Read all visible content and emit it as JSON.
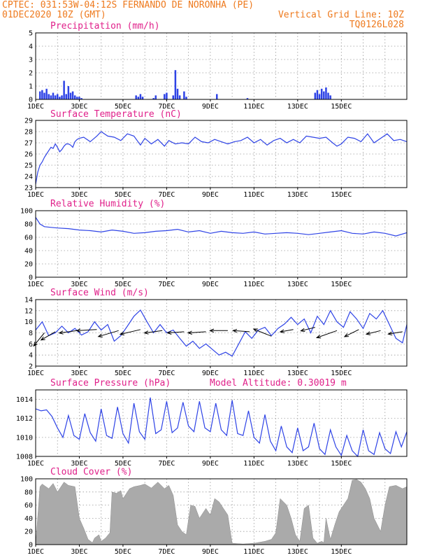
{
  "header": {
    "line1_left": "CPTEC:  031:53W-04:12S  FERNANDO DE NORONHA (PE)",
    "line2_left": "01DEC2020 10Z (GMT)",
    "line2_right": "Vertical Grid Line: 10Z",
    "line3_right": "TQ0126L028"
  },
  "colors": {
    "header": "#ee7a1e",
    "panel_title": "#e0208a",
    "series": "#2e43e6",
    "cloud": "#aaaaaa",
    "grid": "#9a9a9a"
  },
  "x_ticks": [
    "1DEC",
    "3DEC",
    "5DEC",
    "7DEC",
    "9DEC",
    "11DEC",
    "13DEC",
    "15DEC"
  ],
  "chart_data": [
    {
      "type": "bar",
      "title": "Precipitation (mm/h)",
      "ylim": [
        0,
        5
      ],
      "yticks": [
        "0",
        "1",
        "2",
        "3",
        "4",
        "5"
      ],
      "x_unit": "days since 1DEC2020 10Z",
      "x": [
        0.2,
        0.3,
        0.4,
        0.5,
        0.6,
        0.7,
        0.8,
        0.9,
        1.0,
        1.1,
        1.2,
        1.3,
        1.4,
        1.5,
        1.6,
        1.7,
        1.8,
        1.9,
        2.0,
        2.1,
        4.6,
        4.7,
        4.8,
        4.9,
        5.4,
        5.5,
        5.9,
        6.0,
        6.3,
        6.4,
        6.5,
        6.6,
        6.8,
        6.9,
        8.3,
        9.7,
        12.8,
        12.9,
        13.0,
        13.1,
        13.2,
        13.3,
        13.4,
        13.5
      ],
      "values": [
        0.6,
        0.7,
        0.5,
        0.8,
        0.4,
        0.3,
        0.5,
        0.3,
        0.4,
        0.2,
        0.3,
        1.4,
        0.4,
        1.0,
        0.5,
        0.6,
        0.3,
        0.2,
        0.2,
        0.1,
        0.3,
        0.2,
        0.4,
        0.2,
        0.1,
        0.3,
        0.4,
        0.5,
        0.3,
        2.2,
        0.8,
        0.3,
        0.6,
        0.2,
        0.4,
        0.1,
        0.5,
        0.7,
        0.4,
        0.8,
        0.6,
        0.9,
        0.5,
        0.3
      ]
    },
    {
      "type": "line",
      "title": "Surface Temperature (nC)",
      "ylim": [
        23,
        29
      ],
      "yticks": [
        "23",
        "24",
        "25",
        "26",
        "27",
        "28",
        "29"
      ],
      "x_unit": "days since 1DEC2020 10Z",
      "x": [
        0,
        0.1,
        0.2,
        0.3,
        0.4,
        0.5,
        0.6,
        0.7,
        0.8,
        0.9,
        1.0,
        1.1,
        1.2,
        1.3,
        1.4,
        1.5,
        1.6,
        1.7,
        1.8,
        1.9,
        2.0,
        2.2,
        2.5,
        2.8,
        3.0,
        3.3,
        3.6,
        3.9,
        4.2,
        4.5,
        4.8,
        5.0,
        5.3,
        5.6,
        5.9,
        6.1,
        6.4,
        6.7,
        7.0,
        7.3,
        7.6,
        7.9,
        8.2,
        8.5,
        8.8,
        9.1,
        9.4,
        9.7,
        10.0,
        10.3,
        10.6,
        10.9,
        11.2,
        11.5,
        11.8,
        12.1,
        12.4,
        12.7,
        13.0,
        13.3,
        13.6,
        13.8,
        14.0,
        14.3,
        14.6,
        14.9,
        15.2,
        15.5,
        15.8,
        16.1,
        16.4,
        16.7,
        17.0
      ],
      "values": [
        23.3,
        24.4,
        25.0,
        25.3,
        25.7,
        26.0,
        26.3,
        26.6,
        26.5,
        26.9,
        26.6,
        26.2,
        26.4,
        26.7,
        26.9,
        26.9,
        26.8,
        26.6,
        27.1,
        27.3,
        27.4,
        27.5,
        27.1,
        27.6,
        28.0,
        27.6,
        27.5,
        27.2,
        27.8,
        27.6,
        26.8,
        27.4,
        26.9,
        27.3,
        26.7,
        27.2,
        26.9,
        27.0,
        26.9,
        27.5,
        27.1,
        27.0,
        27.3,
        27.1,
        26.9,
        27.1,
        27.2,
        27.5,
        27.0,
        27.3,
        26.8,
        27.2,
        27.4,
        27.0,
        27.3,
        27.0,
        27.6,
        27.5,
        27.4,
        27.5,
        27.0,
        26.7,
        26.9,
        27.5,
        27.4,
        27.1,
        27.8,
        27.0,
        27.4,
        27.8,
        27.2,
        27.3,
        27.1
      ]
    },
    {
      "type": "line",
      "title": "Relative Humidity (%)",
      "ylim": [
        0,
        100
      ],
      "yticks": [
        "0",
        "20",
        "40",
        "60",
        "80",
        "100"
      ],
      "x_unit": "days since 1DEC2020 10Z",
      "x": [
        0,
        0.2,
        0.4,
        0.7,
        1.0,
        1.5,
        2.0,
        2.5,
        3.0,
        3.5,
        4.0,
        4.5,
        5.0,
        5.5,
        6.0,
        6.5,
        7.0,
        7.5,
        8.0,
        8.5,
        9.0,
        9.5,
        10.0,
        10.5,
        11.0,
        11.5,
        12.0,
        12.5,
        13.0,
        13.5,
        14.0,
        14.5,
        15.0,
        15.5,
        16.0,
        16.5,
        17.0
      ],
      "values": [
        90,
        80,
        76,
        75,
        74,
        73,
        71,
        70,
        68,
        71,
        69,
        66,
        67,
        69,
        70,
        72,
        68,
        70,
        66,
        69,
        67,
        66,
        68,
        65,
        66,
        67,
        66,
        64,
        66,
        68,
        70,
        66,
        65,
        68,
        66,
        62,
        67
      ]
    },
    {
      "type": "line",
      "title": "Surface Wind (m/s)",
      "ylim": [
        2,
        14
      ],
      "yticks": [
        "2",
        "4",
        "6",
        "8",
        "10",
        "12",
        "14"
      ],
      "x_unit": "days since 1DEC2020 10Z",
      "x": [
        0,
        0.3,
        0.6,
        0.9,
        1.2,
        1.5,
        1.8,
        2.1,
        2.4,
        2.7,
        3.0,
        3.3,
        3.6,
        3.9,
        4.2,
        4.5,
        4.8,
        5.1,
        5.4,
        5.7,
        6.0,
        6.3,
        6.6,
        6.9,
        7.2,
        7.5,
        7.8,
        8.1,
        8.4,
        8.7,
        9.0,
        9.3,
        9.6,
        9.9,
        10.2,
        10.5,
        10.8,
        11.1,
        11.4,
        11.7,
        12.0,
        12.3,
        12.6,
        12.9,
        13.2,
        13.5,
        13.8,
        14.1,
        14.4,
        14.7,
        15.0,
        15.3,
        15.6,
        15.9,
        16.2,
        16.5,
        16.8,
        17.0
      ],
      "values": [
        8.5,
        10.0,
        7.5,
        8.0,
        9.2,
        8.0,
        8.8,
        7.6,
        8.2,
        10.0,
        8.5,
        9.5,
        6.5,
        7.5,
        9.2,
        11.0,
        12.1,
        10.0,
        8.0,
        9.5,
        8.0,
        8.5,
        7.0,
        5.6,
        6.5,
        5.2,
        6.0,
        5.0,
        4.0,
        4.5,
        3.8,
        6.0,
        8.2,
        7.0,
        8.5,
        9.0,
        7.5,
        8.8,
        9.6,
        10.8,
        9.5,
        10.5,
        8.0,
        11.0,
        9.5,
        12.0,
        10.0,
        9.0,
        11.8,
        10.5,
        8.8,
        11.5,
        10.5,
        12.0,
        9.5,
        7.0,
        6.2,
        9.5
      ],
      "arrows": [
        {
          "x": 0.4,
          "speed": 8.0,
          "dx": -0.45,
          "dy": 0.55
        },
        {
          "x": 0.9,
          "speed": 8.2,
          "dx": -0.6,
          "dy": 0.35
        },
        {
          "x": 1.9,
          "speed": 8.4,
          "dx": -0.75,
          "dy": 0.1
        },
        {
          "x": 2.8,
          "speed": 8.6,
          "dx": -0.85,
          "dy": 0.05
        },
        {
          "x": 3.8,
          "speed": 8.4,
          "dx": -0.85,
          "dy": 0.25
        },
        {
          "x": 4.8,
          "speed": 8.6,
          "dx": -0.85,
          "dy": 0.2
        },
        {
          "x": 5.8,
          "speed": 8.4,
          "dx": -0.75,
          "dy": 0.1
        },
        {
          "x": 6.8,
          "speed": 8.2,
          "dx": -0.7,
          "dy": 0.05
        },
        {
          "x": 7.8,
          "speed": 8.2,
          "dx": -0.75,
          "dy": 0.05
        },
        {
          "x": 8.8,
          "speed": 8.4,
          "dx": -0.75,
          "dy": 0.0
        },
        {
          "x": 9.8,
          "speed": 8.2,
          "dx": -0.7,
          "dy": -0.05
        },
        {
          "x": 10.8,
          "speed": 7.4,
          "dx": -0.75,
          "dy": -0.3
        },
        {
          "x": 11.8,
          "speed": 8.6,
          "dx": -0.55,
          "dy": 0.1
        },
        {
          "x": 12.8,
          "speed": 9.0,
          "dx": -0.6,
          "dy": 0.15
        },
        {
          "x": 13.8,
          "speed": 8.4,
          "dx": -0.85,
          "dy": 0.3
        },
        {
          "x": 14.8,
          "speed": 8.6,
          "dx": -0.6,
          "dy": 0.3
        },
        {
          "x": 15.8,
          "speed": 8.4,
          "dx": -0.6,
          "dy": 0.15
        },
        {
          "x": 16.8,
          "speed": 8.2,
          "dx": -0.6,
          "dy": 0.1
        }
      ]
    },
    {
      "type": "line",
      "title": "Surface Pressure (hPa)",
      "note": "Model Altitude: 0.30019  m",
      "ylim": [
        1008,
        1015
      ],
      "yticks": [
        "1008",
        "1010",
        "1012",
        "1014"
      ],
      "x_unit": "days since 1DEC2020 10Z",
      "x": [
        0,
        0.25,
        0.5,
        0.75,
        1.0,
        1.25,
        1.5,
        1.75,
        2.0,
        2.25,
        2.5,
        2.75,
        3.0,
        3.25,
        3.5,
        3.75,
        4.0,
        4.25,
        4.5,
        4.75,
        5.0,
        5.25,
        5.5,
        5.75,
        6.0,
        6.25,
        6.5,
        6.75,
        7.0,
        7.25,
        7.5,
        7.75,
        8.0,
        8.25,
        8.5,
        8.75,
        9.0,
        9.25,
        9.5,
        9.75,
        10.0,
        10.25,
        10.5,
        10.75,
        11.0,
        11.25,
        11.5,
        11.75,
        12.0,
        12.25,
        12.5,
        12.75,
        13.0,
        13.25,
        13.5,
        13.75,
        14.0,
        14.25,
        14.5,
        14.75,
        15.0,
        15.25,
        15.5,
        15.75,
        16.0,
        16.25,
        16.5,
        16.75,
        17.0
      ],
      "values": [
        1013.0,
        1012.8,
        1012.9,
        1012.2,
        1011.0,
        1010.0,
        1012.3,
        1010.2,
        1009.8,
        1012.5,
        1010.5,
        1009.6,
        1013.0,
        1010.2,
        1009.9,
        1013.2,
        1010.4,
        1009.4,
        1013.6,
        1010.6,
        1009.8,
        1014.2,
        1010.4,
        1010.8,
        1013.8,
        1010.5,
        1011.0,
        1013.7,
        1011.2,
        1010.6,
        1013.8,
        1011.0,
        1010.6,
        1013.6,
        1010.8,
        1010.2,
        1013.9,
        1010.4,
        1010.2,
        1012.8,
        1010.0,
        1009.4,
        1012.4,
        1009.6,
        1008.6,
        1011.2,
        1009.0,
        1008.4,
        1011.0,
        1008.6,
        1009.0,
        1011.5,
        1008.8,
        1008.2,
        1010.8,
        1009.0,
        1008.1,
        1010.2,
        1008.6,
        1008.0,
        1010.8,
        1008.6,
        1008.2,
        1010.5,
        1008.8,
        1008.3,
        1010.6,
        1009.0,
        1010.6
      ]
    },
    {
      "type": "area",
      "title": "Cloud Cover (%)",
      "ylim": [
        0,
        100
      ],
      "yticks": [
        "0",
        "20",
        "40",
        "60",
        "80",
        "100"
      ],
      "x_unit": "days since 1DEC2020 10Z",
      "x": [
        0,
        0.2,
        0.3,
        0.6,
        0.8,
        1.0,
        1.3,
        1.5,
        1.8,
        2.0,
        2.2,
        2.4,
        2.6,
        2.7,
        2.9,
        3.0,
        3.2,
        3.4,
        3.5,
        3.7,
        3.9,
        4.0,
        4.1,
        4.3,
        4.5,
        4.8,
        5.0,
        5.3,
        5.6,
        5.9,
        6.1,
        6.3,
        6.5,
        6.7,
        6.9,
        7.1,
        7.3,
        7.5,
        7.8,
        8.0,
        8.2,
        8.4,
        8.6,
        8.8,
        9.0,
        9.5,
        10.0,
        10.5,
        10.8,
        11.0,
        11.2,
        11.5,
        11.7,
        11.9,
        12.1,
        12.3,
        12.5,
        12.7,
        12.9,
        13.1,
        13.2,
        13.3,
        13.5,
        13.7,
        13.9,
        14.1,
        14.3,
        14.5,
        14.7,
        14.9,
        15.1,
        15.3,
        15.5,
        15.8,
        16.0,
        16.2,
        16.5,
        16.8,
        17.0
      ],
      "values": [
        0,
        88,
        92,
        85,
        93,
        80,
        95,
        90,
        88,
        40,
        25,
        8,
        3,
        10,
        15,
        5,
        10,
        18,
        80,
        78,
        82,
        70,
        75,
        85,
        88,
        90,
        92,
        86,
        95,
        85,
        90,
        75,
        30,
        20,
        15,
        60,
        58,
        40,
        55,
        45,
        70,
        65,
        55,
        45,
        2,
        1,
        2,
        5,
        8,
        18,
        70,
        60,
        40,
        15,
        5,
        55,
        60,
        10,
        2,
        5,
        3,
        40,
        8,
        30,
        50,
        60,
        70,
        98,
        99,
        95,
        85,
        70,
        40,
        20,
        60,
        88,
        90,
        85,
        88
      ]
    }
  ],
  "panel_labels": [
    {
      "title": "Precipitation (mm/h)"
    },
    {
      "title": "Surface Temperature (nC)"
    },
    {
      "title": "Relative Humidity (%)"
    },
    {
      "title": "Surface Wind (m/s)"
    },
    {
      "title": "Surface Pressure (hPa)",
      "note": "Model Altitude: 0.30019  m"
    },
    {
      "title": "Cloud Cover (%)"
    }
  ]
}
